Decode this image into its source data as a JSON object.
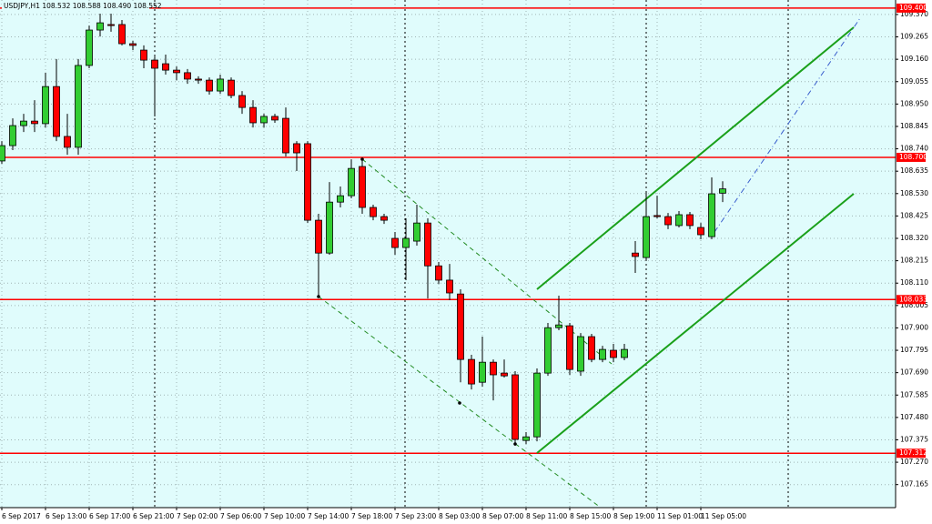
{
  "chart_data": {
    "type": "candlestick",
    "title": "USDJPY,H1  108.532 108.588 108.490 108.552",
    "categories": [
      "6 Sep 2017",
      null,
      null,
      null,
      "6 Sep 13:00",
      null,
      null,
      null,
      "6 Sep 17:00",
      null,
      null,
      null,
      "6 Sep 21:00",
      null,
      null,
      null,
      "7 Sep 02:00",
      null,
      null,
      null,
      "7 Sep 06:00",
      null,
      null,
      null,
      "7 Sep 10:00",
      null,
      null,
      null,
      "7 Sep 14:00",
      null,
      null,
      null,
      "7 Sep 18:00",
      null,
      null,
      null,
      "7 Sep 23:00",
      null,
      null,
      null,
      "8 Sep 03:00",
      null,
      null,
      null,
      "8 Sep 07:00",
      null,
      null,
      null,
      "8 Sep 11:00",
      null,
      null,
      null,
      "8 Sep 15:00",
      null,
      null,
      null,
      "8 Sep 19:00",
      null,
      null,
      null,
      "11 Sep 01:00",
      null,
      null,
      null,
      "11 Sep 05:00",
      null,
      null
    ],
    "open": [
      108.683,
      108.755,
      108.849,
      108.87,
      108.858,
      109.032,
      108.798,
      108.747,
      109.131,
      109.297,
      109.323,
      109.323,
      109.233,
      109.203,
      109.156,
      109.139,
      109.109,
      109.097,
      109.067,
      109.062,
      109.011,
      109.062,
      108.99,
      108.934,
      108.862,
      108.892,
      108.883,
      108.764,
      108.764,
      108.405,
      108.251,
      108.49,
      108.52,
      108.657,
      108.465,
      108.422,
      108.32,
      108.277,
      108.307,
      108.392,
      108.191,
      108.124,
      108.059,
      107.752,
      107.645,
      107.739,
      107.688,
      107.68,
      107.372,
      107.389,
      107.688,
      107.901,
      107.91,
      107.697,
      107.859,
      107.752,
      107.795,
      107.761,
      108.251,
      108.23,
      108.427,
      108.422,
      108.38,
      108.431,
      108.371,
      108.328,
      108.532
    ],
    "high": [
      108.776,
      108.883,
      108.904,
      108.968,
      109.097,
      109.161,
      108.904,
      109.161,
      109.318,
      109.374,
      109.374,
      109.344,
      109.246,
      109.225,
      109.173,
      109.182,
      109.126,
      109.114,
      109.08,
      109.075,
      109.088,
      109.075,
      109.011,
      108.968,
      108.904,
      108.904,
      108.934,
      108.776,
      108.776,
      108.435,
      108.584,
      108.563,
      108.691,
      108.691,
      108.478,
      108.435,
      108.35,
      108.414,
      108.478,
      108.414,
      108.209,
      108.2,
      108.081,
      107.774,
      107.859,
      107.752,
      107.752,
      107.697,
      107.411,
      107.71,
      107.923,
      108.051,
      107.923,
      107.876,
      107.872,
      107.816,
      107.825,
      107.825,
      108.307,
      108.542,
      108.52,
      108.439,
      108.448,
      108.444,
      108.392,
      108.606,
      108.588
    ],
    "low": [
      108.67,
      108.734,
      108.819,
      108.819,
      108.84,
      108.776,
      108.712,
      108.712,
      109.118,
      109.267,
      109.289,
      109.225,
      109.203,
      109.118,
      108.892,
      109.088,
      109.062,
      109.045,
      109.045,
      108.994,
      108.998,
      108.977,
      108.904,
      108.84,
      108.84,
      108.862,
      108.704,
      108.636,
      108.392,
      108.047,
      108.243,
      108.465,
      108.508,
      108.435,
      108.405,
      108.388,
      108.243,
      108.124,
      108.286,
      108.038,
      108.106,
      108.03,
      107.645,
      107.611,
      107.624,
      107.56,
      107.667,
      107.347,
      107.355,
      107.368,
      107.675,
      107.889,
      107.68,
      107.675,
      107.739,
      107.739,
      107.739,
      107.748,
      108.158,
      108.217,
      108.414,
      108.363,
      108.371,
      108.363,
      108.316,
      108.316,
      108.49
    ],
    "close": [
      108.755,
      108.849,
      108.87,
      108.858,
      109.032,
      108.798,
      108.747,
      109.131,
      109.297,
      109.331,
      109.318,
      109.233,
      109.225,
      109.156,
      109.118,
      109.109,
      109.097,
      109.067,
      109.062,
      109.011,
      109.067,
      108.99,
      108.934,
      108.862,
      108.892,
      108.875,
      108.721,
      108.721,
      108.405,
      108.251,
      108.49,
      108.52,
      108.648,
      108.465,
      108.422,
      108.405,
      108.277,
      108.32,
      108.392,
      108.191,
      108.124,
      108.064,
      107.752,
      107.637,
      107.739,
      107.68,
      107.675,
      107.377,
      107.389,
      107.688,
      107.901,
      107.914,
      107.705,
      107.859,
      107.752,
      107.799,
      107.761,
      107.799,
      108.235,
      108.422,
      108.422,
      108.384,
      108.431,
      108.38,
      108.337,
      108.529,
      108.552
    ],
    "up_color": "#32cd32",
    "down_color": "#ff0000",
    "level_color": "#ff0000",
    "grid": true,
    "ylim": [
      107.057,
      109.438
    ],
    "yticks": [
      {
        "value": 109.37,
        "label": "109.370"
      },
      {
        "value": 109.265,
        "label": "109.265"
      },
      {
        "value": 109.16,
        "label": "109.160"
      },
      {
        "value": 109.055,
        "label": "109.055"
      },
      {
        "value": 108.95,
        "label": "108.950"
      },
      {
        "value": 108.845,
        "label": "108.845"
      },
      {
        "value": 108.74,
        "label": "108.740"
      },
      {
        "value": 108.635,
        "label": "108.635"
      },
      {
        "value": 108.53,
        "label": "108.530"
      },
      {
        "value": 108.425,
        "label": "108.425"
      },
      {
        "value": 108.32,
        "label": "108.320"
      },
      {
        "value": 108.215,
        "label": "108.215"
      },
      {
        "value": 108.11,
        "label": "108.110"
      },
      {
        "value": 108.005,
        "label": "108.005"
      },
      {
        "value": 107.9,
        "label": "107.900"
      },
      {
        "value": 107.795,
        "label": "107.795"
      },
      {
        "value": 107.69,
        "label": "107.690"
      },
      {
        "value": 107.585,
        "label": "107.585"
      },
      {
        "value": 107.48,
        "label": "107.480"
      },
      {
        "value": 107.375,
        "label": "107.375"
      },
      {
        "value": 107.27,
        "label": "107.270"
      },
      {
        "value": 107.165,
        "label": "107.165"
      }
    ],
    "levels": [
      {
        "value": 109.4,
        "label": "109.400"
      },
      {
        "value": 108.7,
        "label": "108.700"
      },
      {
        "value": 108.033,
        "label": "108.033"
      },
      {
        "value": 107.312,
        "label": "107.312"
      }
    ]
  }
}
